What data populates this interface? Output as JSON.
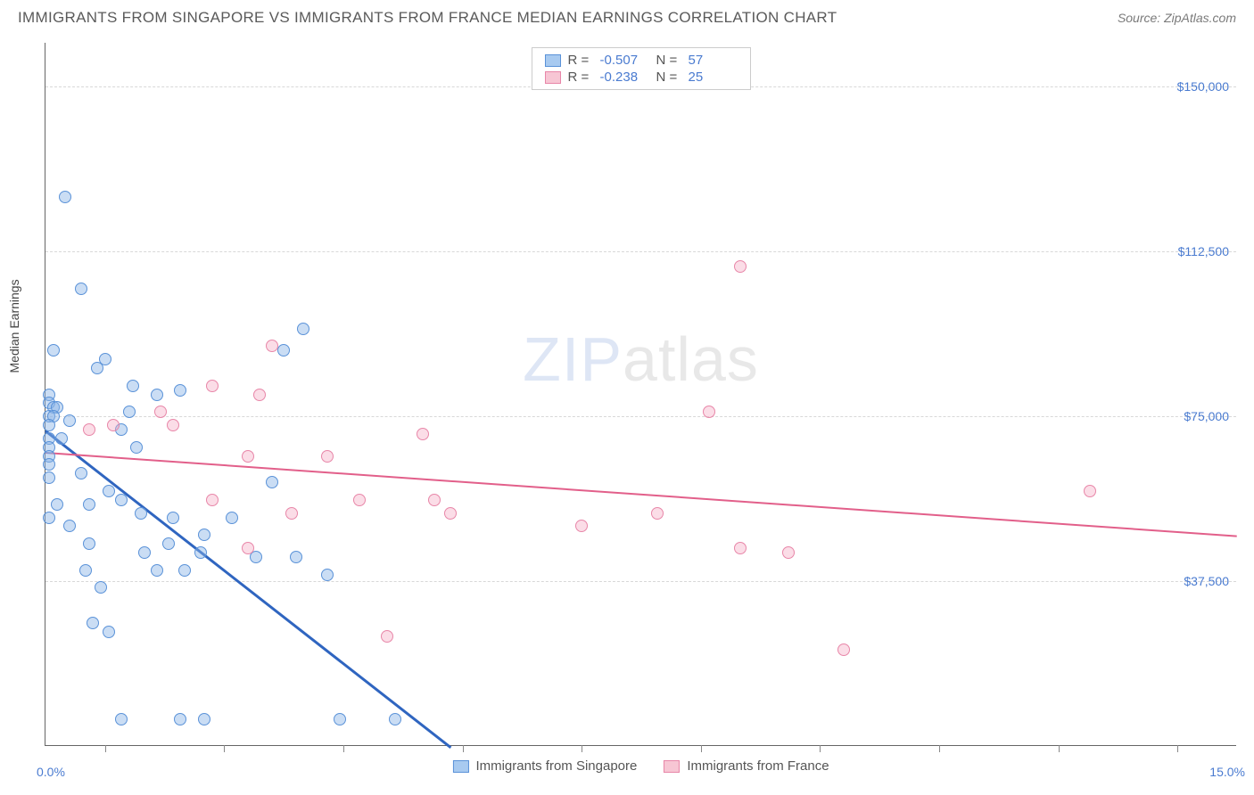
{
  "header": {
    "title": "IMMIGRANTS FROM SINGAPORE VS IMMIGRANTS FROM FRANCE MEDIAN EARNINGS CORRELATION CHART",
    "source": "Source: ZipAtlas.com"
  },
  "watermark": {
    "a": "ZIP",
    "b": "atlas"
  },
  "chart": {
    "type": "scatter",
    "background_color": "#ffffff",
    "grid_color": "#d8d8d8",
    "border_color": "#666666",
    "text_color": "#555555",
    "value_color": "#4a7bd0",
    "xlim": [
      0,
      15
    ],
    "ylim": [
      0,
      160000
    ],
    "x_axis": {
      "min_label": "0.0%",
      "max_label": "15.0%",
      "tick_positions": [
        0.75,
        2.25,
        3.75,
        5.25,
        6.75,
        8.25,
        9.75,
        11.25,
        12.75,
        14.25
      ]
    },
    "y_axis": {
      "title": "Median Earnings",
      "gridlines": [
        {
          "value": 37500,
          "label": "$37,500"
        },
        {
          "value": 75000,
          "label": "$75,000"
        },
        {
          "value": 112500,
          "label": "$112,500"
        },
        {
          "value": 150000,
          "label": "$150,000"
        }
      ]
    },
    "legend_top": [
      {
        "swatch_fill": "#a8caf0",
        "swatch_border": "#5a92d8",
        "r_label": "R =",
        "r_value": "-0.507",
        "n_label": "N =",
        "n_value": "57"
      },
      {
        "swatch_fill": "#f7c6d4",
        "swatch_border": "#e886a8",
        "r_label": "R =",
        "r_value": "-0.238",
        "n_label": "N =",
        "n_value": "25"
      }
    ],
    "legend_bottom": [
      {
        "swatch_fill": "#a8caf0",
        "swatch_border": "#5a92d8",
        "label": "Immigrants from Singapore"
      },
      {
        "swatch_fill": "#f7c6d4",
        "swatch_border": "#e886a8",
        "label": "Immigrants from France"
      }
    ],
    "series": [
      {
        "name": "singapore",
        "fill": "rgba(138,180,230,0.45)",
        "stroke": "#5a92d8",
        "marker_size": 14,
        "trend": {
          "x1": 0,
          "y1": 72000,
          "x2": 5.1,
          "y2": 0,
          "color": "#2f65c0",
          "width": 2.5
        },
        "points": [
          [
            0.25,
            125000
          ],
          [
            0.45,
            104000
          ],
          [
            0.1,
            90000
          ],
          [
            0.75,
            88000
          ],
          [
            0.05,
            80000
          ],
          [
            0.05,
            78000
          ],
          [
            0.1,
            77000
          ],
          [
            0.15,
            77000
          ],
          [
            0.05,
            75000
          ],
          [
            0.1,
            75000
          ],
          [
            0.3,
            74000
          ],
          [
            0.05,
            73000
          ],
          [
            0.05,
            70000
          ],
          [
            0.2,
            70000
          ],
          [
            0.05,
            68000
          ],
          [
            0.05,
            66000
          ],
          [
            0.05,
            64000
          ],
          [
            0.05,
            61000
          ],
          [
            0.65,
            86000
          ],
          [
            1.1,
            82000
          ],
          [
            1.4,
            80000
          ],
          [
            1.7,
            81000
          ],
          [
            1.05,
            76000
          ],
          [
            0.95,
            72000
          ],
          [
            1.15,
            68000
          ],
          [
            0.45,
            62000
          ],
          [
            0.55,
            46000
          ],
          [
            0.8,
            58000
          ],
          [
            0.95,
            56000
          ],
          [
            0.55,
            55000
          ],
          [
            0.15,
            55000
          ],
          [
            0.05,
            52000
          ],
          [
            0.3,
            50000
          ],
          [
            1.2,
            53000
          ],
          [
            1.6,
            52000
          ],
          [
            2.0,
            48000
          ],
          [
            0.5,
            40000
          ],
          [
            0.7,
            36000
          ],
          [
            1.4,
            40000
          ],
          [
            1.75,
            40000
          ],
          [
            1.25,
            44000
          ],
          [
            1.55,
            46000
          ],
          [
            2.35,
            52000
          ],
          [
            1.95,
            44000
          ],
          [
            2.65,
            43000
          ],
          [
            3.15,
            43000
          ],
          [
            3.55,
            39000
          ],
          [
            3.25,
            95000
          ],
          [
            3.0,
            90000
          ],
          [
            0.6,
            28000
          ],
          [
            0.8,
            26000
          ],
          [
            2.85,
            60000
          ],
          [
            0.95,
            6000
          ],
          [
            1.7,
            6000
          ],
          [
            2.0,
            6000
          ],
          [
            3.7,
            6000
          ],
          [
            4.4,
            6000
          ]
        ]
      },
      {
        "name": "france",
        "fill": "rgba(245,170,195,0.40)",
        "stroke": "#e886a8",
        "marker_size": 14,
        "trend": {
          "x1": 0,
          "y1": 67000,
          "x2": 15,
          "y2": 48000,
          "color": "#e25f8a",
          "width": 2
        },
        "points": [
          [
            0.85,
            73000
          ],
          [
            0.55,
            72000
          ],
          [
            1.45,
            76000
          ],
          [
            1.6,
            73000
          ],
          [
            2.1,
            82000
          ],
          [
            2.7,
            80000
          ],
          [
            2.85,
            91000
          ],
          [
            2.55,
            66000
          ],
          [
            2.1,
            56000
          ],
          [
            2.55,
            45000
          ],
          [
            3.55,
            66000
          ],
          [
            3.1,
            53000
          ],
          [
            3.95,
            56000
          ],
          [
            4.3,
            25000
          ],
          [
            4.75,
            71000
          ],
          [
            4.9,
            56000
          ],
          [
            5.1,
            53000
          ],
          [
            6.75,
            50000
          ],
          [
            7.7,
            53000
          ],
          [
            8.35,
            76000
          ],
          [
            8.75,
            109000
          ],
          [
            8.75,
            45000
          ],
          [
            9.35,
            44000
          ],
          [
            10.05,
            22000
          ],
          [
            13.15,
            58000
          ]
        ]
      }
    ]
  }
}
